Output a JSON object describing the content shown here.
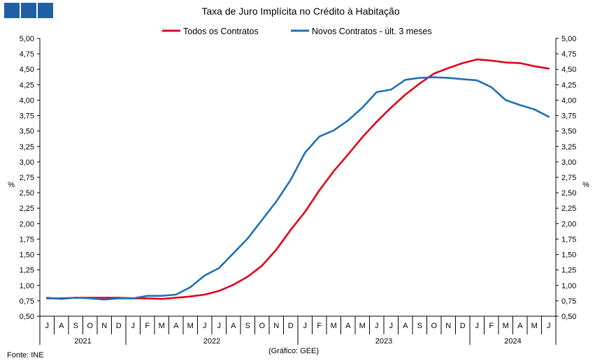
{
  "chart_data": {
    "type": "line",
    "title": "Taxa de Juro Implícita  no Crédito à Habitação",
    "ylabel": "%",
    "ylabel_right": "%",
    "ylim": [
      0.5,
      5.0
    ],
    "yticks": [
      "0,50",
      "0,75",
      "1,00",
      "1,25",
      "1,50",
      "1,75",
      "2,00",
      "2,25",
      "2,50",
      "2,75",
      "3,00",
      "3,25",
      "3,50",
      "3,75",
      "4,00",
      "4,25",
      "4,50",
      "4,75",
      "5,00"
    ],
    "ytick_values": [
      0.5,
      0.75,
      1.0,
      1.25,
      1.5,
      1.75,
      2.0,
      2.25,
      2.5,
      2.75,
      3.0,
      3.25,
      3.5,
      3.75,
      4.0,
      4.25,
      4.5,
      4.75,
      5.0
    ],
    "categories": [
      "J",
      "A",
      "S",
      "O",
      "N",
      "D",
      "J",
      "F",
      "M",
      "A",
      "M",
      "J",
      "J",
      "A",
      "S",
      "O",
      "N",
      "D",
      "J",
      "F",
      "M",
      "A",
      "M",
      "J",
      "J",
      "A",
      "S",
      "O",
      "N",
      "D",
      "J",
      "F",
      "M",
      "A",
      "M",
      "J"
    ],
    "years": [
      {
        "label": "2021",
        "count": 6
      },
      {
        "label": "2022",
        "count": 12
      },
      {
        "label": "2023",
        "count": 12
      },
      {
        "label": "2024",
        "count": 6
      }
    ],
    "legend_position": "top",
    "grid": false,
    "series": [
      {
        "name": "Todos os Contratos",
        "color": "#e2001a",
        "values": [
          0.79,
          0.79,
          0.8,
          0.8,
          0.8,
          0.8,
          0.79,
          0.79,
          0.78,
          0.8,
          0.82,
          0.85,
          0.91,
          1.01,
          1.14,
          1.32,
          1.58,
          1.9,
          2.19,
          2.54,
          2.85,
          3.12,
          3.4,
          3.65,
          3.88,
          4.09,
          4.27,
          4.43,
          4.52,
          4.6,
          4.66,
          4.64,
          4.61,
          4.6,
          4.55,
          4.51
        ]
      },
      {
        "name": "Novos Contratos - últ. 3 meses",
        "color": "#1f6fb5",
        "values": [
          0.8,
          0.78,
          0.8,
          0.79,
          0.77,
          0.79,
          0.79,
          0.83,
          0.83,
          0.85,
          0.97,
          1.16,
          1.28,
          1.52,
          1.76,
          2.06,
          2.36,
          2.71,
          3.15,
          3.41,
          3.51,
          3.67,
          3.88,
          4.13,
          4.17,
          4.33,
          4.36,
          4.37,
          4.36,
          4.34,
          4.32,
          4.21,
          4.0,
          3.92,
          3.85,
          3.73
        ]
      }
    ]
  },
  "footer": {
    "source": "Fonte: INE",
    "credit": "(Gráfico: GEE)"
  },
  "logo": {
    "color": "#1f5fa6"
  }
}
